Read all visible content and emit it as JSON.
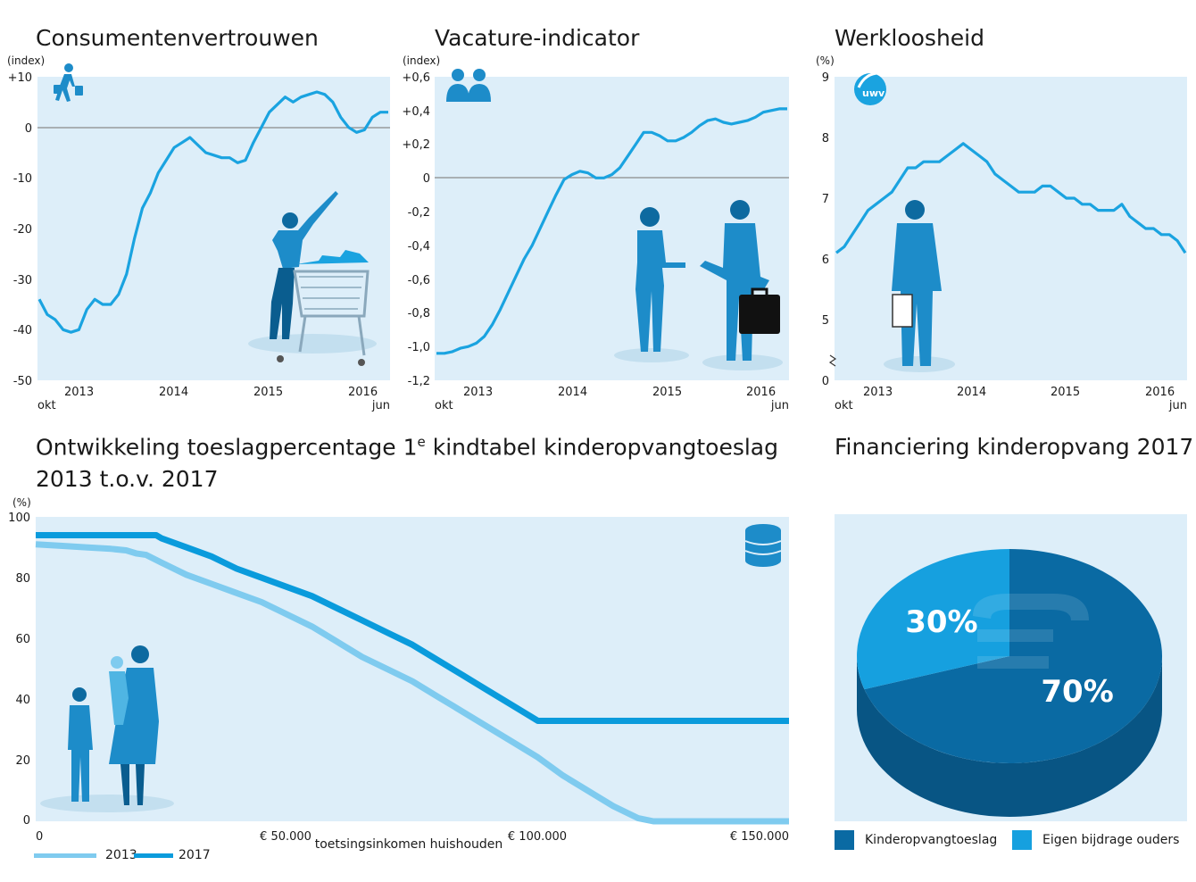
{
  "colors": {
    "panel_bg": "#ddeef9",
    "line": "#1aa3e0",
    "line_2013": "#7fcbef",
    "line_2017": "#0a9bdc",
    "zero_line": "#8a8a8a",
    "pie_dark": "#0a6aa3",
    "pie_dark_side": "#085584",
    "pie_light": "#16a0df",
    "pie_light_side": "#0d85bd",
    "figure": "#1d8cc9"
  },
  "charts": [
    {
      "id": "consumer",
      "type": "line",
      "title": "Consumentenvertrouwen",
      "unit_label": "(index)",
      "y_ticks": [
        "+10",
        "0",
        "-10",
        "-20",
        "-30",
        "-40",
        "-50"
      ],
      "x_ticks": [
        "2013",
        "2014",
        "2015",
        "2016"
      ],
      "x_start_label": "okt",
      "x_end_label": "jun",
      "ylim": [
        -50,
        10
      ],
      "icon": "pedestrian-shopping-icon",
      "x": [
        "2012-10",
        "2012-11",
        "2012-12",
        "2013-01",
        "2013-02",
        "2013-03",
        "2013-04",
        "2013-05",
        "2013-06",
        "2013-07",
        "2013-08",
        "2013-09",
        "2013-10",
        "2013-11",
        "2013-12",
        "2014-01",
        "2014-02",
        "2014-03",
        "2014-04",
        "2014-05",
        "2014-06",
        "2014-07",
        "2014-08",
        "2014-09",
        "2014-10",
        "2014-11",
        "2014-12",
        "2015-01",
        "2015-02",
        "2015-03",
        "2015-04",
        "2015-05",
        "2015-06",
        "2015-07",
        "2015-08",
        "2015-09",
        "2015-10",
        "2015-11",
        "2015-12",
        "2016-01",
        "2016-02",
        "2016-03",
        "2016-04",
        "2016-05",
        "2016-06"
      ],
      "values": [
        -34,
        -37,
        -38,
        -40,
        -40.5,
        -40,
        -36,
        -34,
        -35,
        -35,
        -33,
        -29,
        -22,
        -16,
        -13,
        -9,
        -6.5,
        -4,
        -3,
        -2,
        -3.5,
        -5,
        -5.5,
        -6,
        -6,
        -7,
        -6.5,
        -3,
        0,
        3,
        4.5,
        6,
        5,
        6,
        6.5,
        7,
        6.5,
        5,
        2,
        0,
        -1,
        -0.5,
        2,
        3,
        3
      ]
    },
    {
      "id": "vacature",
      "type": "line",
      "title": "Vacature-indicator",
      "unit_label": "(index)",
      "y_ticks": [
        "+0,6",
        "+0,4",
        "+0,2",
        "0",
        "-0,2",
        "-0,4",
        "-0,6",
        "-0,8",
        "-1,0",
        "-1,2"
      ],
      "x_ticks": [
        "2013",
        "2014",
        "2015",
        "2016"
      ],
      "x_start_label": "okt",
      "x_end_label": "jun",
      "ylim": [
        -1.2,
        0.6
      ],
      "icon": "people-icon",
      "x": [
        "2012-10",
        "2012-11",
        "2012-12",
        "2013-01",
        "2013-02",
        "2013-03",
        "2013-04",
        "2013-05",
        "2013-06",
        "2013-07",
        "2013-08",
        "2013-09",
        "2013-10",
        "2013-11",
        "2013-12",
        "2014-01",
        "2014-02",
        "2014-03",
        "2014-04",
        "2014-05",
        "2014-06",
        "2014-07",
        "2014-08",
        "2014-09",
        "2014-10",
        "2014-11",
        "2014-12",
        "2015-01",
        "2015-02",
        "2015-03",
        "2015-04",
        "2015-05",
        "2015-06",
        "2015-07",
        "2015-08",
        "2015-09",
        "2015-10",
        "2015-11",
        "2015-12",
        "2016-01",
        "2016-02",
        "2016-03",
        "2016-04",
        "2016-05",
        "2016-06"
      ],
      "values": [
        -1.04,
        -1.04,
        -1.03,
        -1.01,
        -1.0,
        -0.98,
        -0.94,
        -0.87,
        -0.78,
        -0.68,
        -0.58,
        -0.48,
        -0.4,
        -0.3,
        -0.2,
        -0.1,
        -0.01,
        0.02,
        0.04,
        0.03,
        0.0,
        0.0,
        0.02,
        0.06,
        0.13,
        0.2,
        0.27,
        0.27,
        0.25,
        0.22,
        0.22,
        0.24,
        0.27,
        0.31,
        0.34,
        0.35,
        0.33,
        0.32,
        0.33,
        0.34,
        0.36,
        0.39,
        0.4,
        0.41,
        0.41
      ]
    },
    {
      "id": "werkloos",
      "type": "line",
      "title": "Werkloosheid",
      "unit_label": "(%)",
      "y_ticks": [
        "9",
        "8",
        "7",
        "6",
        "5",
        "0"
      ],
      "x_ticks": [
        "2013",
        "2014",
        "2015",
        "2016"
      ],
      "x_start_label": "okt",
      "x_end_label": "jun",
      "ylim": [
        4.0,
        9.0
      ],
      "axis_break": true,
      "icon": "uwv-logo-icon",
      "logo_text": "uwv",
      "x": [
        "2012-10",
        "2012-11",
        "2012-12",
        "2013-01",
        "2013-02",
        "2013-03",
        "2013-04",
        "2013-05",
        "2013-06",
        "2013-07",
        "2013-08",
        "2013-09",
        "2013-10",
        "2013-11",
        "2013-12",
        "2014-01",
        "2014-02",
        "2014-03",
        "2014-04",
        "2014-05",
        "2014-06",
        "2014-07",
        "2014-08",
        "2014-09",
        "2014-10",
        "2014-11",
        "2014-12",
        "2015-01",
        "2015-02",
        "2015-03",
        "2015-04",
        "2015-05",
        "2015-06",
        "2015-07",
        "2015-08",
        "2015-09",
        "2015-10",
        "2015-11",
        "2015-12",
        "2016-01",
        "2016-02",
        "2016-03",
        "2016-04",
        "2016-05",
        "2016-06"
      ],
      "values": [
        6.1,
        6.2,
        6.4,
        6.6,
        6.8,
        6.9,
        7.0,
        7.1,
        7.3,
        7.5,
        7.5,
        7.6,
        7.6,
        7.6,
        7.7,
        7.8,
        7.9,
        7.8,
        7.7,
        7.6,
        7.4,
        7.3,
        7.2,
        7.1,
        7.1,
        7.1,
        7.2,
        7.2,
        7.1,
        7.0,
        7.0,
        6.9,
        6.9,
        6.8,
        6.8,
        6.8,
        6.9,
        6.7,
        6.6,
        6.5,
        6.5,
        6.4,
        6.4,
        6.3,
        6.1
      ]
    }
  ],
  "toeslag": {
    "type": "line",
    "title_line1": "Ontwikkeling toeslagpercentage 1",
    "title_sup": "e",
    "title_line1_rest": " kindtabel kinderopvangtoeslag",
    "title_line2": "2013 t.o.v. 2017",
    "unit_label": "(%)",
    "y_ticks": [
      "100",
      "80",
      "60",
      "40",
      "20",
      "0"
    ],
    "x_ticks": [
      "0",
      "€ 50.000",
      "€ 100.000",
      "€ 150.000"
    ],
    "xlabel": "toetsingsinkomen huishouden",
    "xlim": [
      0,
      150000
    ],
    "ylim": [
      0,
      100
    ],
    "icon": "coins-stack-icon",
    "series": [
      {
        "name": "2013",
        "x": [
          0,
          5000,
          10000,
          15000,
          18000,
          20000,
          22000,
          25000,
          30000,
          35000,
          40000,
          45000,
          50000,
          55000,
          60000,
          65000,
          70000,
          75000,
          80000,
          85000,
          90000,
          95000,
          100000,
          105000,
          110000,
          115000,
          120000,
          123000,
          125000,
          130000,
          140000,
          150000
        ],
        "values": [
          91,
          90.5,
          90,
          89.5,
          89,
          88,
          87.5,
          85,
          81,
          78,
          75,
          72,
          68,
          64,
          59,
          54,
          50,
          46,
          41,
          36,
          31,
          26,
          21,
          15,
          10,
          5,
          1,
          0,
          0,
          0,
          0,
          0
        ]
      },
      {
        "name": "2017",
        "x": [
          0,
          5000,
          10000,
          15000,
          20000,
          24000,
          25000,
          30000,
          35000,
          40000,
          45000,
          50000,
          55000,
          60000,
          65000,
          70000,
          75000,
          80000,
          85000,
          90000,
          95000,
          98000,
          100000,
          110000,
          120000,
          130000,
          140000,
          150000
        ],
        "values": [
          94,
          94,
          94,
          94,
          94,
          94,
          93,
          90,
          87,
          83,
          80,
          77,
          74,
          70,
          66,
          62,
          58,
          53,
          48,
          43,
          38,
          35,
          33,
          33,
          33,
          33,
          33,
          33
        ]
      }
    ]
  },
  "financiering": {
    "type": "pie",
    "title": "Financiering kinderopvang 2017",
    "slices": [
      {
        "name": "Kinderopvangtoeslag",
        "value": 70,
        "label": "70%"
      },
      {
        "name": "Eigen bijdrage ouders",
        "value": 30,
        "label": "30%"
      }
    ]
  }
}
